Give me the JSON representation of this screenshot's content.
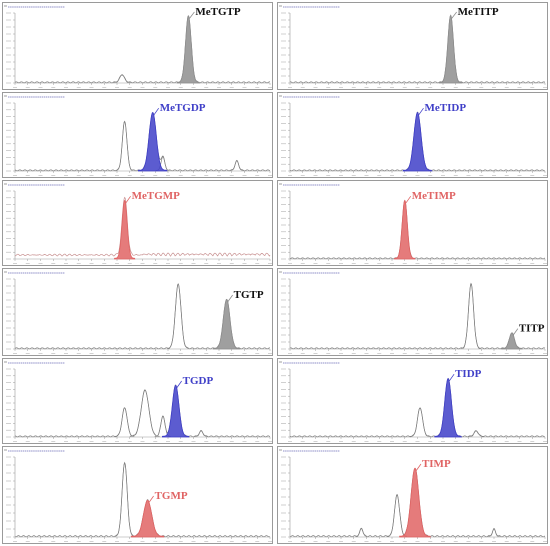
{
  "colors": {
    "gray": "#8e8e8e",
    "blue": "#4040c8",
    "red": "#e06464",
    "trace": "#808080",
    "axis": "#9a9a9a"
  },
  "chart_data": [
    {
      "type": "line",
      "panel": 1,
      "xlim": [
        0,
        100
      ],
      "ylim": [
        0,
        1
      ],
      "peaks": [
        {
          "label": "MeTGTP",
          "color": "gray",
          "center": 68,
          "height": 0.95,
          "width": 1.1,
          "filled": true
        }
      ],
      "minor": [
        {
          "center": 42,
          "height": 0.11,
          "width": 0.9
        }
      ]
    },
    {
      "type": "line",
      "panel": 2,
      "xlim": [
        0,
        100
      ],
      "ylim": [
        0,
        1
      ],
      "peaks": [
        {
          "label": "MeTITP",
          "color": "gray",
          "center": 63,
          "height": 0.95,
          "width": 1.1,
          "filled": true
        }
      ],
      "minor": []
    },
    {
      "type": "line",
      "panel": 3,
      "xlim": [
        0,
        100
      ],
      "ylim": [
        0,
        1
      ],
      "peaks": [
        {
          "label": "MeTGDP",
          "color": "blue",
          "center": 54,
          "height": 0.85,
          "width": 1.4,
          "filled": true
        }
      ],
      "minor": [
        {
          "center": 43,
          "height": 0.72,
          "width": 0.9
        },
        {
          "center": 58,
          "height": 0.2,
          "width": 0.7
        },
        {
          "center": 87,
          "height": 0.14,
          "width": 0.7
        }
      ]
    },
    {
      "type": "line",
      "panel": 4,
      "xlim": [
        0,
        100
      ],
      "ylim": [
        0,
        1
      ],
      "peaks": [
        {
          "label": "MeTIDP",
          "color": "blue",
          "center": 50,
          "height": 0.85,
          "width": 1.4,
          "filled": true
        }
      ],
      "minor": []
    },
    {
      "type": "line",
      "panel": 5,
      "xlim": [
        0,
        100
      ],
      "ylim": [
        0,
        1
      ],
      "peaks": [
        {
          "label": "MeTGMP",
          "color": "red",
          "center": 43,
          "height": 0.85,
          "width": 1.0,
          "filled": true
        }
      ],
      "minor": [],
      "noise": true
    },
    {
      "type": "line",
      "panel": 6,
      "xlim": [
        0,
        100
      ],
      "ylim": [
        0,
        1
      ],
      "peaks": [
        {
          "label": "MeTIMP",
          "color": "red",
          "center": 45,
          "height": 0.85,
          "width": 1.0,
          "filled": true
        }
      ],
      "minor": []
    },
    {
      "type": "line",
      "panel": 7,
      "xlim": [
        0,
        100
      ],
      "ylim": [
        0,
        1
      ],
      "peaks": [
        {
          "label": "TGTP",
          "color": "gray",
          "center": 83,
          "height": 0.7,
          "width": 1.3,
          "filled": true
        }
      ],
      "minor": [
        {
          "center": 64,
          "height": 0.92,
          "width": 1.1
        }
      ]
    },
    {
      "type": "line",
      "panel": 8,
      "xlim": [
        0,
        100
      ],
      "ylim": [
        0,
        1
      ],
      "peaks": [
        {
          "label": "TITP",
          "color": "gray",
          "center": 87,
          "height": 0.22,
          "width": 1.0,
          "filled": true
        }
      ],
      "minor": [
        {
          "center": 71,
          "height": 0.92,
          "width": 1.0
        }
      ]
    },
    {
      "type": "line",
      "panel": 9,
      "xlim": [
        0,
        100
      ],
      "ylim": [
        0,
        1
      ],
      "peaks": [
        {
          "label": "TGDP",
          "color": "blue",
          "center": 63,
          "height": 0.75,
          "width": 1.3,
          "filled": true
        }
      ],
      "minor": [
        {
          "center": 43,
          "height": 0.42,
          "width": 1.0
        },
        {
          "center": 51,
          "height": 0.68,
          "width": 1.5
        },
        {
          "center": 58,
          "height": 0.3,
          "width": 0.8
        },
        {
          "center": 73,
          "height": 0.08,
          "width": 0.7
        }
      ]
    },
    {
      "type": "line",
      "panel": 10,
      "xlim": [
        0,
        100
      ],
      "ylim": [
        0,
        1
      ],
      "peaks": [
        {
          "label": "TIDP",
          "color": "blue",
          "center": 62,
          "height": 0.85,
          "width": 1.3,
          "filled": true
        }
      ],
      "minor": [
        {
          "center": 51,
          "height": 0.42,
          "width": 1.0
        },
        {
          "center": 73,
          "height": 0.08,
          "width": 0.8
        }
      ]
    },
    {
      "type": "line",
      "panel": 11,
      "xlim": [
        0,
        100
      ],
      "ylim": [
        0,
        1
      ],
      "peaks": [
        {
          "label": "TGMP",
          "color": "red",
          "center": 52,
          "height": 0.45,
          "width": 1.6,
          "filled": true
        }
      ],
      "minor": [
        {
          "center": 43,
          "height": 0.92,
          "width": 1.0
        }
      ]
    },
    {
      "type": "line",
      "panel": 12,
      "xlim": [
        0,
        100
      ],
      "ylim": [
        0,
        1
      ],
      "peaks": [
        {
          "label": "TIMP",
          "color": "red",
          "center": 49,
          "height": 0.85,
          "width": 1.5,
          "filled": true
        }
      ],
      "minor": [
        {
          "center": 42,
          "height": 0.52,
          "width": 1.0
        },
        {
          "center": 28,
          "height": 0.1,
          "width": 0.6
        },
        {
          "center": 80,
          "height": 0.09,
          "width": 0.6
        }
      ]
    }
  ]
}
